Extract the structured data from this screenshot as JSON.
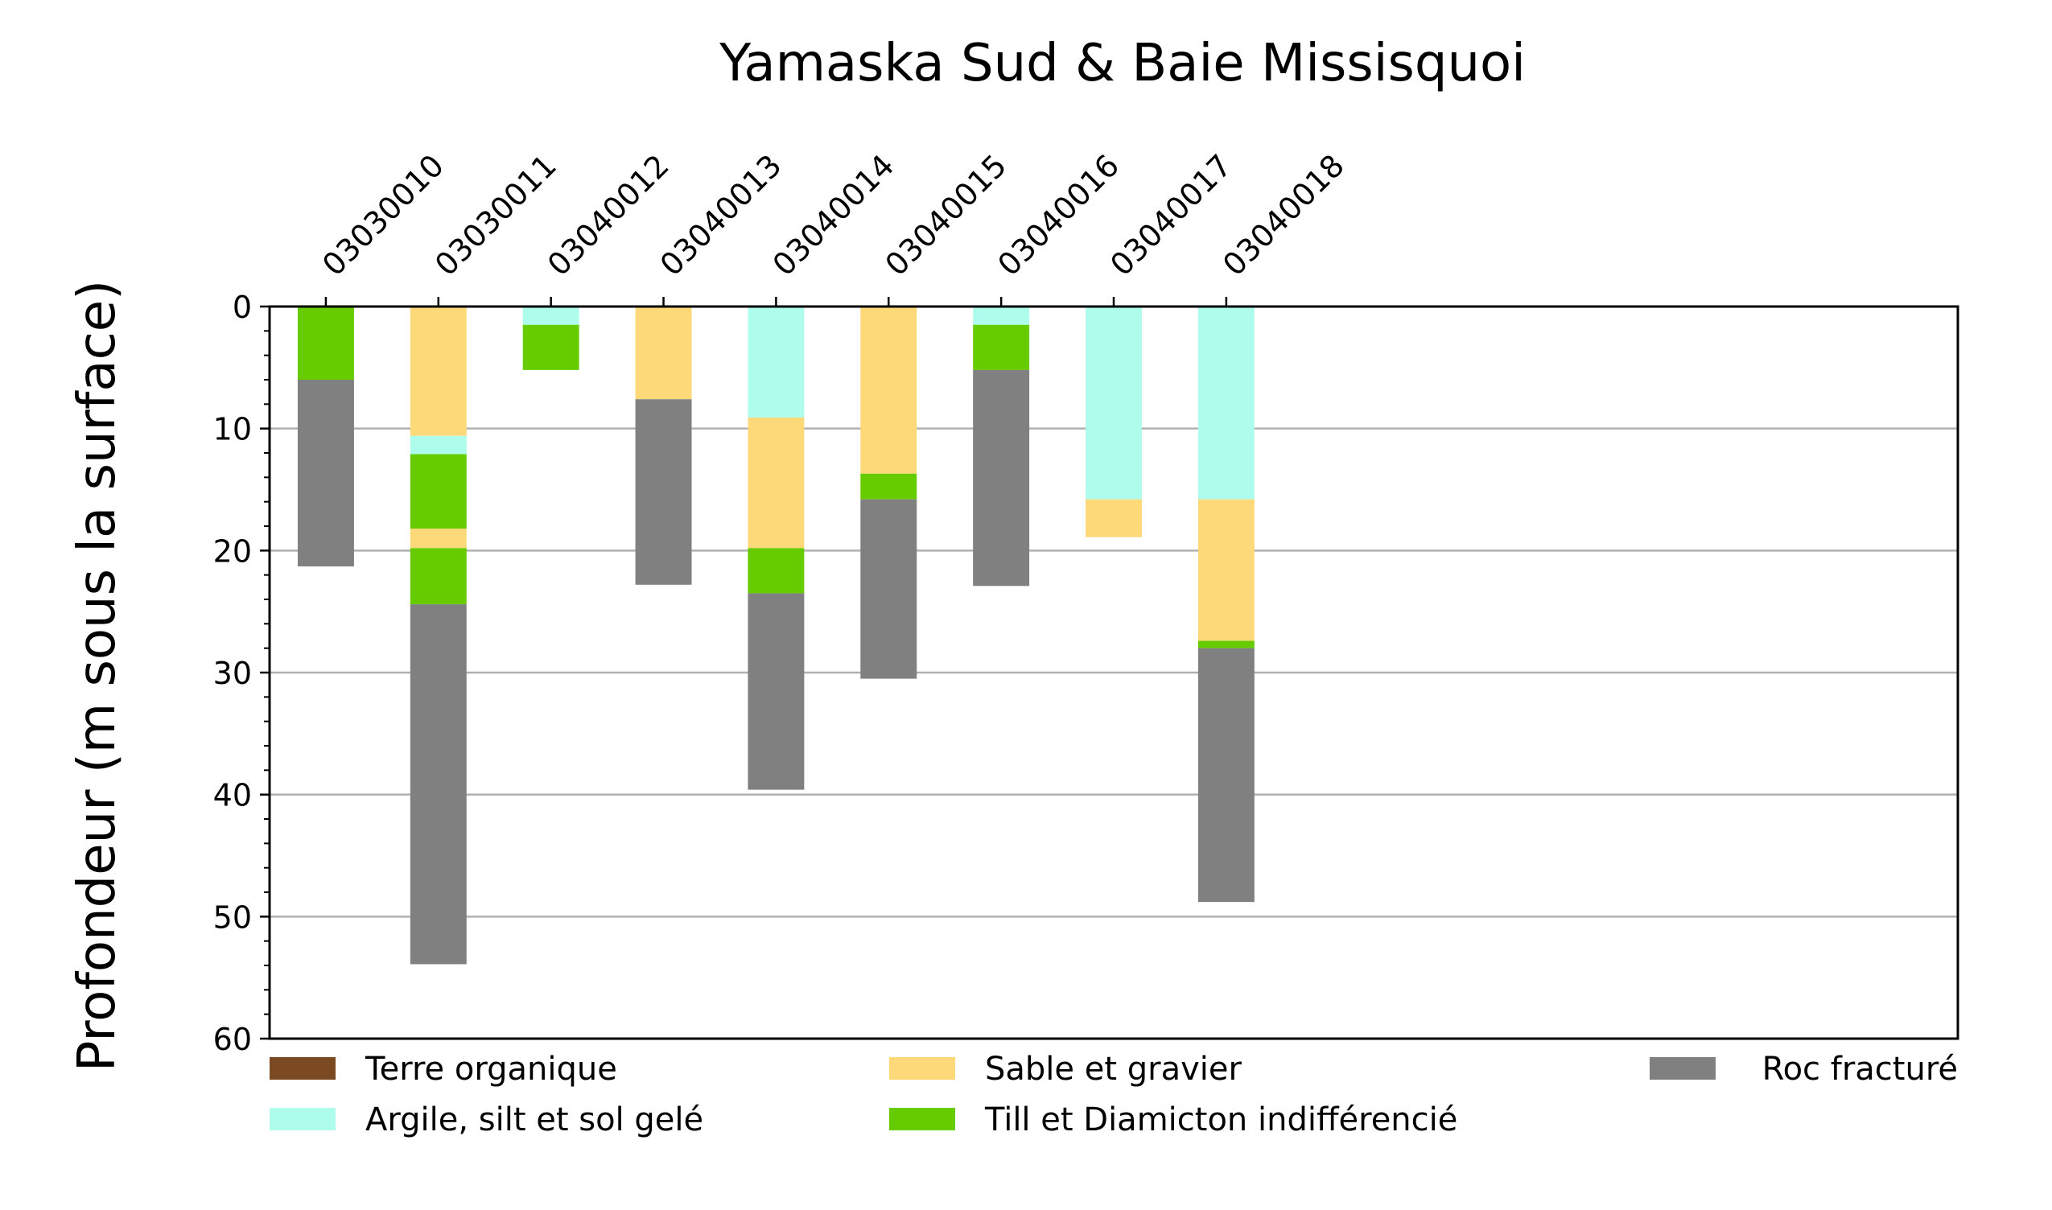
{
  "chart_data": {
    "type": "bar",
    "stacked": true,
    "orientation": "vertical",
    "title": "Yamaska Sud & Baie Missisquoi",
    "ylabel": "Profondeur (m sous la surface)",
    "xlabel": "",
    "x_axis_position": "top",
    "y_inverted": true,
    "ylim": [
      0,
      60
    ],
    "yticks": [
      0,
      10,
      20,
      30,
      40,
      50,
      60
    ],
    "y_minor_step": 2,
    "grid": "horizontal major",
    "category_slots": 15,
    "categories": [
      "03030010",
      "03030011",
      "03040012",
      "03040013",
      "03040014",
      "03040015",
      "03040016",
      "03040017",
      "03040018"
    ],
    "materials": [
      {
        "key": "terre",
        "name": "Terre organique",
        "color": "#7b4a22"
      },
      {
        "key": "argile",
        "name": "Argile, silt et sol gelé",
        "color": "#aefdec"
      },
      {
        "key": "sable",
        "name": "Sable et gravier",
        "color": "#fed97a"
      },
      {
        "key": "till",
        "name": "Till et Diamicton indifférencié",
        "color": "#66cc00"
      },
      {
        "key": "roc",
        "name": "Roc fracturé",
        "color": "#808080"
      }
    ],
    "legend_order": [
      "terre",
      "sable",
      "roc",
      "argile",
      "till"
    ],
    "legend_position": "bottom",
    "boreholes": [
      {
        "id": "03030010",
        "layers": [
          {
            "material": "till",
            "top": 0,
            "bottom": 6.0
          },
          {
            "material": "roc",
            "top": 6.0,
            "bottom": 21.3
          }
        ]
      },
      {
        "id": "03030011",
        "layers": [
          {
            "material": "sable",
            "top": 0,
            "bottom": 10.6
          },
          {
            "material": "argile",
            "top": 10.6,
            "bottom": 12.1
          },
          {
            "material": "till",
            "top": 12.1,
            "bottom": 18.2
          },
          {
            "material": "sable",
            "top": 18.2,
            "bottom": 19.8
          },
          {
            "material": "till",
            "top": 19.8,
            "bottom": 24.4
          },
          {
            "material": "roc",
            "top": 24.4,
            "bottom": 53.9
          }
        ]
      },
      {
        "id": "03040012",
        "layers": [
          {
            "material": "argile",
            "top": 0,
            "bottom": 1.5
          },
          {
            "material": "till",
            "top": 1.5,
            "bottom": 5.2
          }
        ]
      },
      {
        "id": "03040013",
        "layers": [
          {
            "material": "sable",
            "top": 0,
            "bottom": 7.6
          },
          {
            "material": "roc",
            "top": 7.6,
            "bottom": 22.8
          }
        ]
      },
      {
        "id": "03040014",
        "layers": [
          {
            "material": "argile",
            "top": 0,
            "bottom": 9.1
          },
          {
            "material": "sable",
            "top": 9.1,
            "bottom": 19.8
          },
          {
            "material": "till",
            "top": 19.8,
            "bottom": 23.5
          },
          {
            "material": "roc",
            "top": 23.5,
            "bottom": 39.6
          }
        ]
      },
      {
        "id": "03040015",
        "layers": [
          {
            "material": "sable",
            "top": 0,
            "bottom": 13.7
          },
          {
            "material": "till",
            "top": 13.7,
            "bottom": 15.8
          },
          {
            "material": "roc",
            "top": 15.8,
            "bottom": 30.5
          }
        ]
      },
      {
        "id": "03040016",
        "layers": [
          {
            "material": "argile",
            "top": 0,
            "bottom": 1.5
          },
          {
            "material": "till",
            "top": 1.5,
            "bottom": 5.2
          },
          {
            "material": "roc",
            "top": 5.2,
            "bottom": 22.9
          }
        ]
      },
      {
        "id": "03040017",
        "layers": [
          {
            "material": "argile",
            "top": 0,
            "bottom": 15.8
          },
          {
            "material": "sable",
            "top": 15.8,
            "bottom": 18.9
          }
        ]
      },
      {
        "id": "03040018",
        "layers": [
          {
            "material": "argile",
            "top": 0,
            "bottom": 15.8
          },
          {
            "material": "sable",
            "top": 15.8,
            "bottom": 27.4
          },
          {
            "material": "till",
            "top": 27.4,
            "bottom": 28.0
          },
          {
            "material": "roc",
            "top": 28.0,
            "bottom": 48.8
          }
        ]
      }
    ]
  }
}
